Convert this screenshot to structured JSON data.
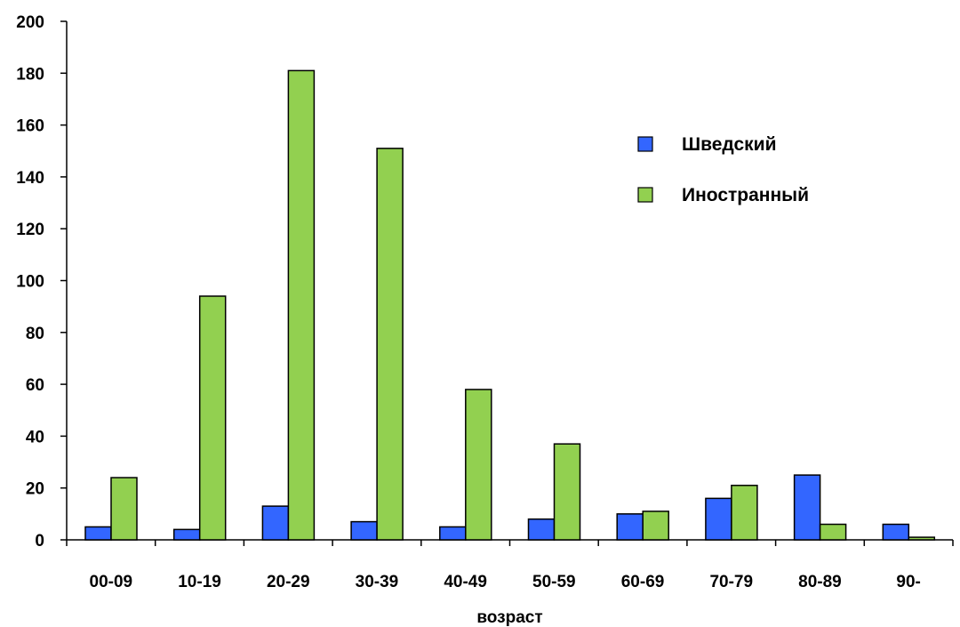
{
  "chart_data": {
    "type": "bar",
    "categories": [
      "00-09",
      "10-19",
      "20-29",
      "30-39",
      "40-49",
      "50-59",
      "60-69",
      "70-79",
      "80-89",
      "90-"
    ],
    "series": [
      {
        "name": "Шведский",
        "color": "#3366ff",
        "values": [
          5,
          4,
          13,
          7,
          5,
          8,
          10,
          16,
          25,
          6
        ]
      },
      {
        "name": "Иностранный",
        "color": "#92d050",
        "values": [
          24,
          94,
          181,
          151,
          58,
          37,
          11,
          21,
          6,
          1
        ]
      }
    ],
    "xlabel": "возраст",
    "ylabel": "",
    "ylim": [
      0,
      200
    ],
    "yticks": [
      0,
      20,
      40,
      60,
      80,
      100,
      120,
      140,
      160,
      180,
      200
    ],
    "grid": false,
    "legend_position": "top-right"
  }
}
